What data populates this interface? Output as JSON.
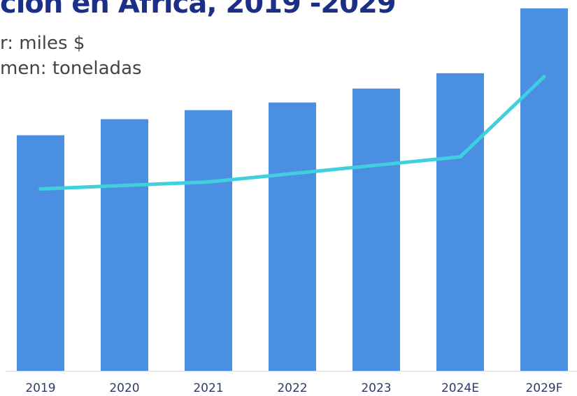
{
  "chart_data": {
    "type": "bar",
    "title": "ción en África, 2019 -2029",
    "legend": [
      "r: miles $",
      "men: toneladas"
    ],
    "categories": [
      "2019",
      "2020",
      "2021",
      "2022",
      "2023",
      "2024E",
      "2029F"
    ],
    "series": [
      {
        "type": "bar",
        "values": [
          338,
          361,
          374,
          385,
          405,
          427,
          520
        ]
      },
      {
        "type": "line",
        "values": [
          261,
          266,
          271,
          283,
          295,
          307,
          422
        ]
      }
    ],
    "ylim": [
      0,
      520
    ],
    "grid": false,
    "colors": {
      "bar": "#4a8fe2",
      "line": "#3fcfdd",
      "axis": "#dddddd",
      "tick": "#2c3a66"
    }
  }
}
